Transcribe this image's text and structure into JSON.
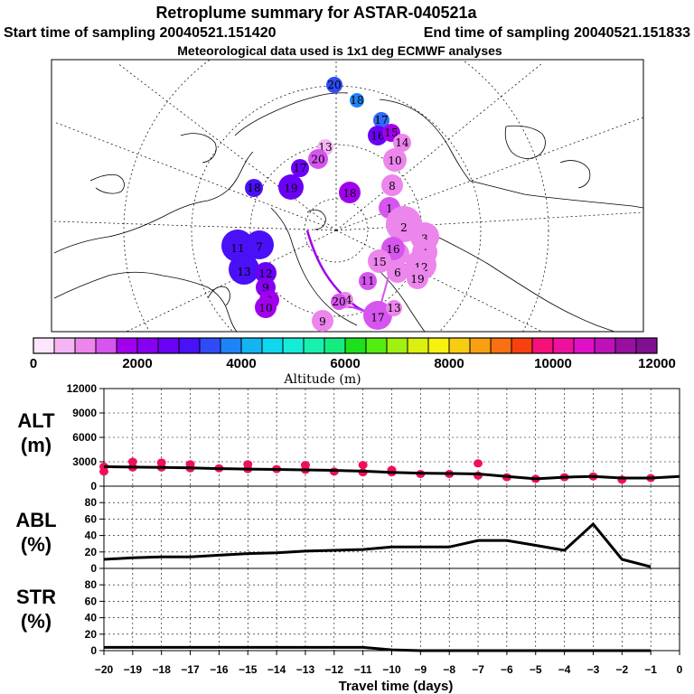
{
  "header": {
    "title": "Retroplume summary for ASTAR-040521a",
    "start_time": "Start time of sampling 20040521.151420",
    "end_time": "End time of sampling 20040521.151833",
    "met_data": "Meteorological data used is 1x1 deg ECMWF analyses"
  },
  "colorbar": {
    "label": "Altitude (m)",
    "ticks": [
      "0",
      "2000",
      "4000",
      "6000",
      "8000",
      "10000",
      "12000"
    ],
    "colors": [
      "#fde6fd",
      "#f5b5f5",
      "#ec85ec",
      "#d655ee",
      "#a100ee",
      "#8600f2",
      "#6b00f6",
      "#4a10f8",
      "#2f4bf8",
      "#1e84f6",
      "#12b5f2",
      "#0fd8ee",
      "#14ecd8",
      "#18f0b0",
      "#14ec80",
      "#1ce01c",
      "#55ec10",
      "#a0f010",
      "#dcf010",
      "#f8f010",
      "#f8cc10",
      "#f8a010",
      "#f87010",
      "#f84010",
      "#f8107a",
      "#f010a0",
      "#e010c8",
      "#c010b8",
      "#9810a0",
      "#801090"
    ]
  },
  "map": {
    "points": [
      {
        "label": "20",
        "color": "#2f4bf8"
      },
      {
        "label": "18",
        "color": "#1e84f6"
      },
      {
        "label": "17",
        "color": "#2f6bf8"
      },
      {
        "label": "16",
        "color": "#6b00f6"
      },
      {
        "label": "15",
        "color": "#a100ee"
      },
      {
        "label": "14",
        "color": "#ec85ec"
      },
      {
        "label": "13",
        "color": "#f5b5f5"
      },
      {
        "label": "10",
        "color": "#ec85ec"
      },
      {
        "label": "20",
        "color": "#d655ee"
      },
      {
        "label": "8",
        "color": "#ec85ec"
      },
      {
        "label": "1",
        "color": "#d655ee"
      },
      {
        "label": "2",
        "color": "#ec85ec"
      },
      {
        "label": "3",
        "color": "#ec85ec"
      },
      {
        "label": "4",
        "color": "#ec85ec"
      },
      {
        "label": "5",
        "color": "#ec85ec"
      },
      {
        "label": "6",
        "color": "#ec85ec"
      },
      {
        "label": "17",
        "color": "#d655ee"
      },
      {
        "label": "16",
        "color": "#d655ee"
      },
      {
        "label": "15",
        "color": "#ec85ec"
      },
      {
        "label": "11",
        "color": "#d655ee"
      },
      {
        "label": "12",
        "color": "#ec85ec"
      },
      {
        "label": "19",
        "color": "#ec85ec"
      },
      {
        "label": "9",
        "color": "#ec85ec"
      },
      {
        "label": "14",
        "color": "#ec85ec"
      },
      {
        "label": "13",
        "color": "#ec85ec"
      },
      {
        "label": "18",
        "color": "#a100ee"
      },
      {
        "label": "17",
        "color": "#6b00f6"
      },
      {
        "label": "19",
        "color": "#6b00f6"
      },
      {
        "label": "18",
        "color": "#4a10f8"
      },
      {
        "label": "11",
        "color": "#4a10f8"
      },
      {
        "label": "7",
        "color": "#4a10f8"
      },
      {
        "label": "13",
        "color": "#4a10f8"
      },
      {
        "label": "12",
        "color": "#6b00f6"
      },
      {
        "label": "9",
        "color": "#8600f2"
      },
      {
        "label": "8",
        "color": "#a100ee"
      },
      {
        "label": "10",
        "color": "#a100ee"
      },
      {
        "label": "20",
        "color": "#d655ee"
      }
    ]
  },
  "chart_data": [
    {
      "type": "scatter",
      "name": "ALT",
      "ylabel": "ALT (m)",
      "ylabel_lines": [
        "ALT",
        "(m)"
      ],
      "ylim": [
        0,
        12000
      ],
      "yticks": [
        "0",
        "3000",
        "6000",
        "9000",
        "12000"
      ],
      "ytick_values": [
        0,
        3000,
        6000,
        9000,
        12000
      ],
      "line": {
        "x": [
          -20,
          -19,
          -18,
          -17,
          -16,
          -15,
          -14,
          -13,
          -12,
          -11,
          -10,
          -9,
          -8,
          -7,
          -6,
          -5,
          -4,
          -3,
          -2,
          -1,
          0
        ],
        "y": [
          2400,
          2350,
          2300,
          2250,
          2150,
          2100,
          2050,
          2000,
          1950,
          1850,
          1700,
          1600,
          1550,
          1500,
          1200,
          900,
          1100,
          1200,
          1000,
          1000,
          1200
        ]
      },
      "points": {
        "x": [
          -20,
          -19,
          -18,
          -17,
          -16,
          -15,
          -14,
          -13,
          -12,
          -11,
          -10,
          -9,
          -8,
          -7,
          -6,
          -5,
          -4,
          -3,
          -2,
          -1,
          -20,
          -19,
          -18,
          -17,
          -15,
          -13,
          -11,
          -10,
          -7
        ],
        "y": [
          2400,
          2300,
          2300,
          2200,
          2200,
          2100,
          2100,
          2000,
          1800,
          1700,
          1700,
          1500,
          1500,
          1300,
          1100,
          900,
          1100,
          1200,
          800,
          1000,
          1800,
          3000,
          2900,
          2700,
          2700,
          2600,
          2600,
          2000,
          2800
        ]
      },
      "point_color": "#f0105a"
    },
    {
      "type": "line",
      "name": "ABL",
      "ylabel": "ABL (%)",
      "ylabel_lines": [
        "ABL",
        "(%)"
      ],
      "ylim": [
        0,
        100
      ],
      "yticks": [
        "0",
        "20",
        "40",
        "60",
        "80"
      ],
      "ytick_values": [
        0,
        20,
        40,
        60,
        80
      ],
      "x": [
        -20,
        -19,
        -18,
        -17,
        -16,
        -15,
        -14,
        -13,
        -12,
        -11,
        -10,
        -9,
        -8,
        -7,
        -6,
        -5,
        -4,
        -3,
        -2,
        -1
      ],
      "y": [
        11,
        13,
        14,
        14,
        16,
        18,
        19,
        21,
        22,
        23,
        26,
        26,
        26,
        34,
        34,
        28,
        22,
        54,
        11,
        2
      ]
    },
    {
      "type": "line",
      "name": "STR",
      "ylabel": "STR (%)",
      "ylabel_lines": [
        "STR",
        "(%)"
      ],
      "ylim": [
        0,
        100
      ],
      "yticks": [
        "0",
        "20",
        "40",
        "60",
        "80"
      ],
      "ytick_values": [
        0,
        20,
        40,
        60,
        80
      ],
      "x": [
        -20,
        -19,
        -18,
        -17,
        -16,
        -15,
        -14,
        -13,
        -12,
        -11,
        -10,
        -9,
        -8,
        -7,
        -6,
        -5,
        -4,
        -3,
        -2,
        -1
      ],
      "y": [
        4,
        4,
        4,
        4,
        4,
        4,
        4,
        4,
        4,
        4,
        1,
        0,
        0,
        0,
        0,
        0,
        0,
        0,
        0,
        0
      ]
    }
  ],
  "xaxis": {
    "label": "Travel time (days)",
    "ticks": [
      "−20",
      "−19",
      "−18",
      "−17",
      "−16",
      "−15",
      "−14",
      "−13",
      "−12",
      "−11",
      "−10",
      "−9",
      "−8",
      "−7",
      "−6",
      "−5",
      "−4",
      "−3",
      "−2",
      "−1",
      "0"
    ],
    "values": [
      -20,
      -19,
      -18,
      -17,
      -16,
      -15,
      -14,
      -13,
      -12,
      -11,
      -10,
      -9,
      -8,
      -7,
      -6,
      -5,
      -4,
      -3,
      -2,
      -1,
      0
    ]
  }
}
